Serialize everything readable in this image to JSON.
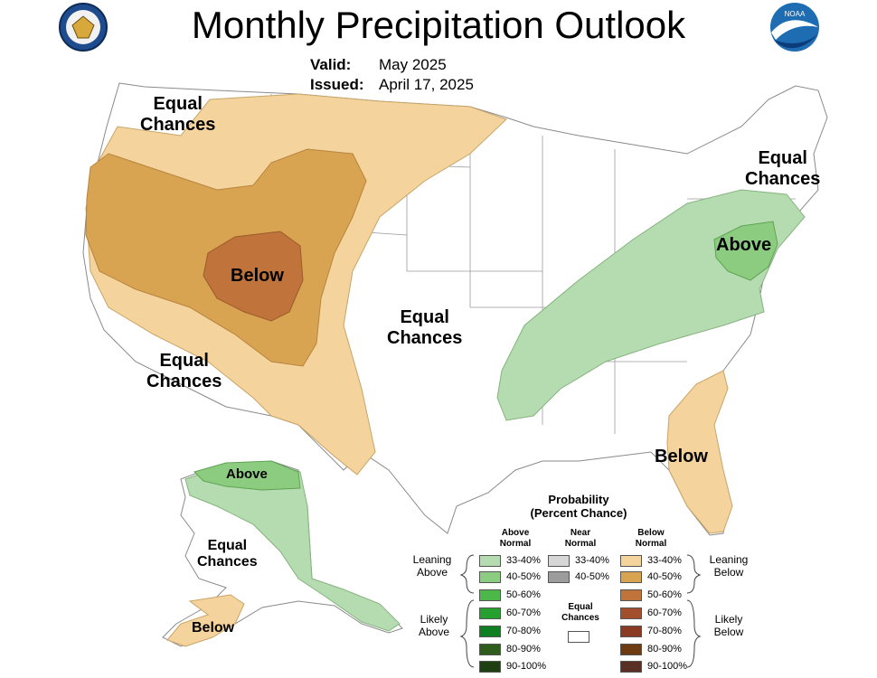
{
  "title": "Monthly Precipitation Outlook",
  "valid": {
    "label": "Valid:",
    "value": "May 2025"
  },
  "issued": {
    "label": "Issued:",
    "value": "April 17, 2025"
  },
  "logos": {
    "noaa": "NOAA"
  },
  "map_labels": {
    "nw": [
      "Equal",
      "Chances"
    ],
    "below_core": "Below",
    "sw": [
      "Equal",
      "Chances"
    ],
    "central": [
      "Equal",
      "Chances"
    ],
    "ne": [
      "Equal",
      "Chances"
    ],
    "above_east": "Above",
    "below_se": "Below",
    "above_ak": "Above",
    "ak_equal": [
      "Equal",
      "Chances"
    ],
    "below_ak": "Below"
  },
  "legend": {
    "title": [
      "Probability",
      "(Percent Chance)"
    ],
    "col_above": [
      "Above",
      "Normal"
    ],
    "col_near": [
      "Near",
      "Normal"
    ],
    "col_below": [
      "Below",
      "Normal"
    ],
    "leaning_above": [
      "Leaning",
      "Above"
    ],
    "likely_above": [
      "Likely",
      "Above"
    ],
    "leaning_below": [
      "Leaning",
      "Below"
    ],
    "likely_below": [
      "Likely",
      "Below"
    ],
    "equal": [
      "Equal",
      "Chances"
    ],
    "above": [
      {
        "label": "33-40%",
        "color": "#b5dcb0"
      },
      {
        "label": "40-50%",
        "color": "#8ccc80"
      },
      {
        "label": "50-60%",
        "color": "#4db84a"
      },
      {
        "label": "60-70%",
        "color": "#26a12f"
      },
      {
        "label": "70-80%",
        "color": "#0f7f22"
      },
      {
        "label": "80-90%",
        "color": "#2e5c1a"
      },
      {
        "label": "90-100%",
        "color": "#1e3f12"
      }
    ],
    "near": [
      {
        "label": "33-40%",
        "color": "#d6d6d6"
      },
      {
        "label": "40-50%",
        "color": "#9c9c9c"
      }
    ],
    "below": [
      {
        "label": "33-40%",
        "color": "#f4d39d"
      },
      {
        "label": "40-50%",
        "color": "#d9a451"
      },
      {
        "label": "50-60%",
        "color": "#c0743c"
      },
      {
        "label": "60-70%",
        "color": "#a34f2d"
      },
      {
        "label": "70-80%",
        "color": "#8b3a24"
      },
      {
        "label": "80-90%",
        "color": "#6e3a12"
      },
      {
        "label": "90-100%",
        "color": "#5a3024"
      }
    ]
  }
}
